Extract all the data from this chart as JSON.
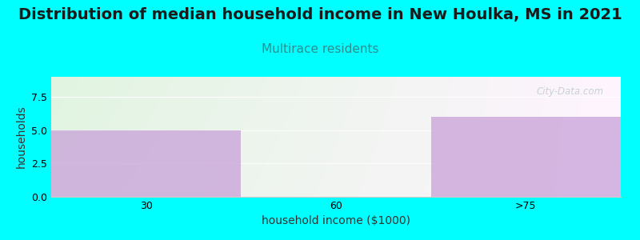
{
  "title": "Distribution of median household income in New Houlka, MS in 2021",
  "subtitle": "Multirace residents",
  "xlabel": "household income ($1000)",
  "ylabel": "households",
  "categories": [
    "30",
    "60",
    ">75"
  ],
  "values": [
    5,
    0,
    6
  ],
  "bar_color": "#c8a0d8",
  "bar_alpha": 0.75,
  "bg_color": "#00FFFF",
  "plot_bg_top_left": "#daf0da",
  "plot_bg_top_right": "#f0f8f0",
  "plot_bg_bottom": "#ffffff",
  "ylim": [
    0,
    9
  ],
  "yticks": [
    0,
    2.5,
    5,
    7.5
  ],
  "title_fontsize": 14,
  "subtitle_fontsize": 11,
  "subtitle_color": "#2a9090",
  "title_color": "#1a1a1a",
  "axis_label_fontsize": 10,
  "tick_fontsize": 9,
  "watermark": "City-Data.com",
  "watermark_color": "#c0ccd0"
}
